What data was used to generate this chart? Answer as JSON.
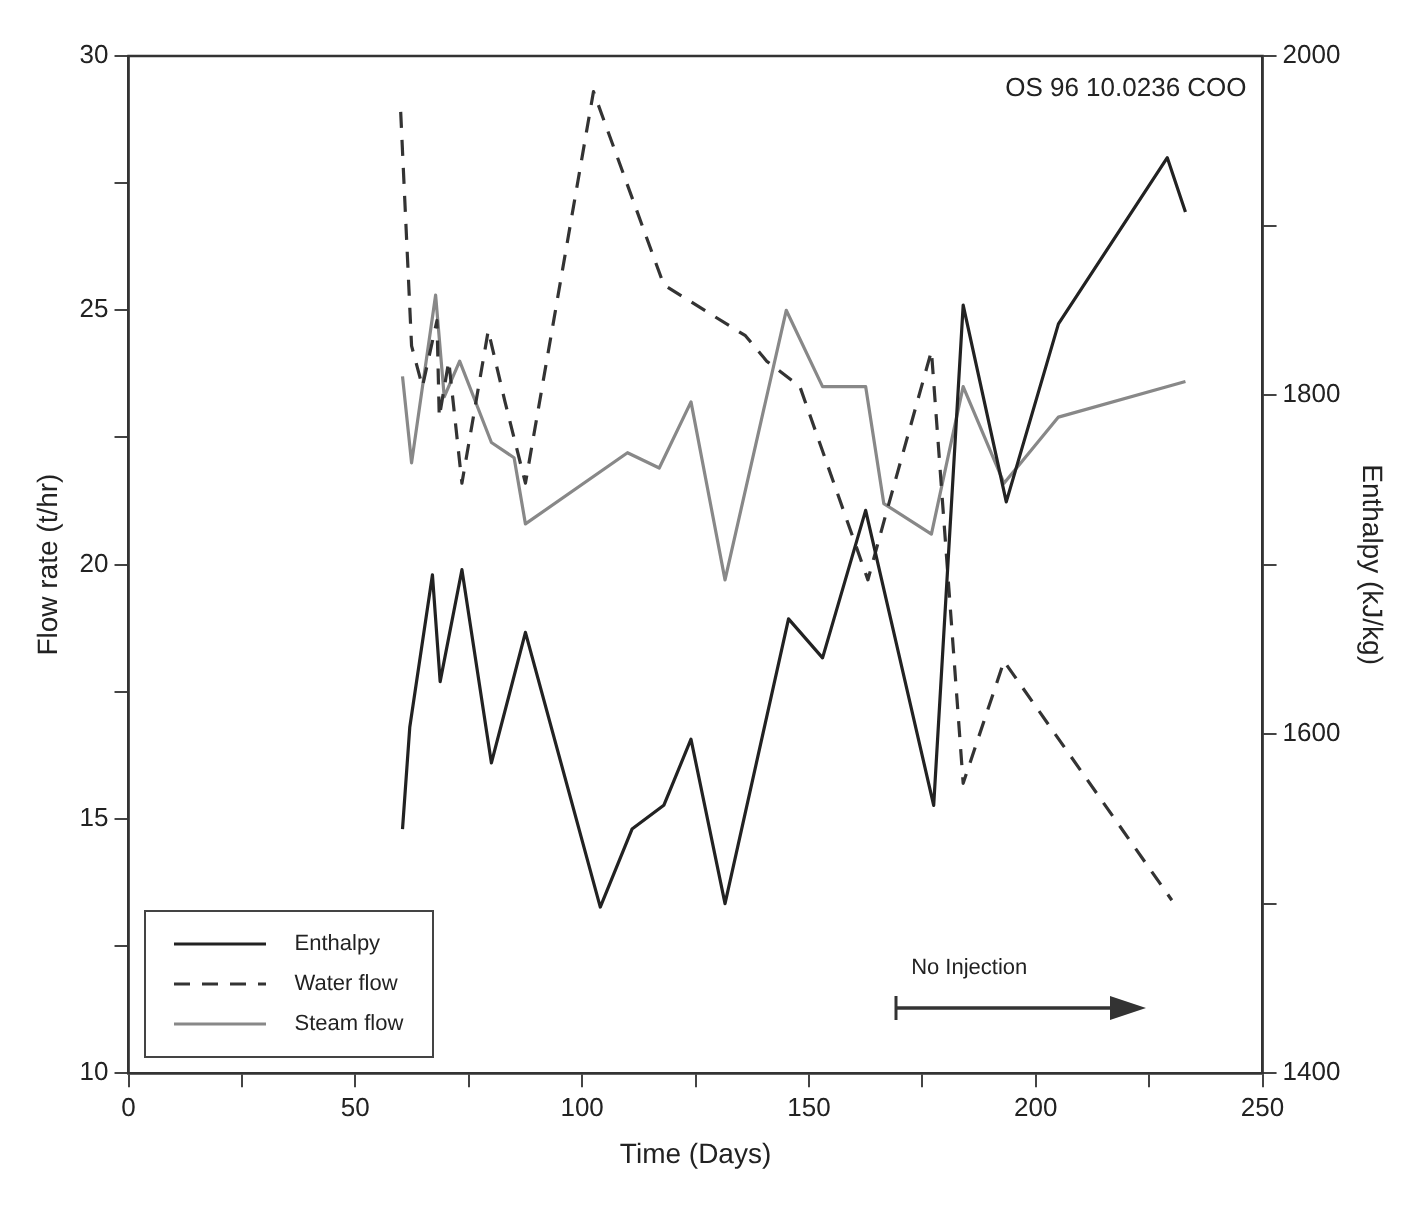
{
  "chart_data": {
    "type": "line",
    "xlabel": "Time (Days)",
    "ylabel": "Flow rate (t/hr)",
    "y2label": "Enthalpy (kJ/kg)",
    "xlim": [
      0,
      250
    ],
    "xticks": [
      0,
      {
        "value": 25,
        "label": null
      },
      50,
      {
        "value": 75,
        "label": null
      },
      100,
      {
        "value": 125,
        "label": null
      },
      150,
      {
        "value": 175,
        "label": null
      },
      200,
      {
        "value": 225,
        "label": null
      },
      250
    ],
    "ylim": [
      10,
      30
    ],
    "yticks": [
      10,
      {
        "value": 12.5,
        "label": null
      },
      15,
      {
        "value": 17.5,
        "label": null
      },
      20,
      {
        "value": 22.5,
        "label": null
      },
      25,
      {
        "value": 27.5,
        "label": null
      },
      30
    ],
    "y2lim": [
      1400,
      2000
    ],
    "y2ticks": [
      1400,
      {
        "value": 1500,
        "label": null
      },
      1600,
      {
        "value": 1700,
        "label": null
      },
      1800,
      {
        "value": 1900,
        "label": null
      },
      2000
    ],
    "grid": false,
    "legend": "bottom left",
    "marker": "none",
    "annotations": [
      "OS 96 10.0236 COO",
      "No Injection"
    ],
    "series": [
      {
        "name": "Enthalpy",
        "color": "#222222",
        "axis": "y2",
        "line_style": "solid",
        "x": [
          60.4,
          62,
          67,
          68.7,
          73.5,
          80,
          87.5,
          104,
          111,
          118,
          124,
          131.5,
          145.5,
          153,
          162.5,
          177.5,
          184,
          193.5,
          205,
          229,
          233
        ],
        "values": [
          1544,
          1604,
          1694,
          1631,
          1697,
          1583,
          1660,
          1498,
          1544,
          1558,
          1597,
          1500,
          1668,
          1645,
          1732,
          1558,
          1853,
          1737,
          1842,
          1940,
          1908
        ]
      },
      {
        "name": "Water flow",
        "color": "#333333",
        "line_style": "dashed",
        "x": [
          60,
          62.4,
          64.8,
          68,
          68.5,
          70.6,
          73.5,
          79.3,
          83,
          87.5,
          102.5,
          118,
          136,
          140.7,
          148,
          163,
          167,
          177,
          184,
          193,
          230
        ],
        "values": [
          28.9,
          24.3,
          23.5,
          24.8,
          22.9,
          24.0,
          21.6,
          24.6,
          23.2,
          21.6,
          29.3,
          25.5,
          24.5,
          24.0,
          23.5,
          19.7,
          21.0,
          24.2,
          15.7,
          18.1,
          13.4
        ]
      },
      {
        "name": "Steam flow",
        "color": "#888888",
        "line_style": "solid",
        "x": [
          60.4,
          62.4,
          67.7,
          69.6,
          73,
          80,
          85,
          87.5,
          110,
          117,
          124,
          131.5,
          145,
          153,
          162.5,
          166.5,
          177,
          184,
          193,
          205,
          233
        ],
        "values": [
          23.7,
          22.0,
          25.3,
          23.3,
          24.0,
          22.4,
          22.1,
          20.8,
          22.2,
          21.9,
          23.2,
          19.7,
          25.0,
          23.5,
          23.5,
          21.2,
          20.6,
          23.5,
          21.6,
          22.9,
          23.6
        ]
      }
    ]
  }
}
